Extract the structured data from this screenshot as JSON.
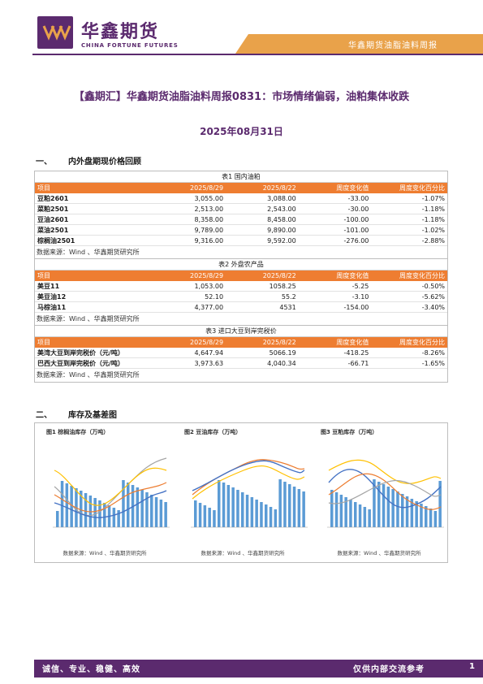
{
  "header": {
    "logo_cn": "华鑫期货",
    "logo_en": "CHINA FORTUNE FUTURES",
    "band_text": "华鑫期货油脂油料周报"
  },
  "title": "【鑫期汇】华鑫期货油脂油料周报0831：市场情绪偏弱，油粕集体收跌",
  "date": "2025年08月31日",
  "section1": {
    "num": "一、",
    "label": "内外盘期现价格回顾"
  },
  "section2": {
    "num": "二、",
    "label": "库存及基差图"
  },
  "tables": [
    {
      "caption": "表1 国内油粕",
      "headers": [
        "项目",
        "2025/8/29",
        "2025/8/22",
        "周度变化值",
        "周度变化百分比"
      ],
      "rows": [
        [
          "豆粕2601",
          "3,055.00",
          "3,088.00",
          "-33.00",
          "-1.07%"
        ],
        [
          "菜粕2501",
          "2,513.00",
          "2,543.00",
          "-30.00",
          "-1.18%"
        ],
        [
          "豆油2601",
          "8,358.00",
          "8,458.00",
          "-100.00",
          "-1.18%"
        ],
        [
          "菜油2501",
          "9,789.00",
          "9,890.00",
          "-101.00",
          "-1.02%"
        ],
        [
          "棕榈油2501",
          "9,316.00",
          "9,592.00",
          "-276.00",
          "-2.88%"
        ]
      ],
      "source": "数据来源：Wind 、华鑫期货研究所"
    },
    {
      "caption": "表2 外盘农产品",
      "headers": [
        "项目",
        "2025/8/29",
        "2025/8/22",
        "周度变化值",
        "周度变化百分比"
      ],
      "rows": [
        [
          "美豆11",
          "1,053.00",
          "1058.25",
          "-5.25",
          "-0.50%"
        ],
        [
          "美豆油12",
          "52.10",
          "55.2",
          "-3.10",
          "-5.62%"
        ],
        [
          "马棕油11",
          "4,377.00",
          "4531",
          "-154.00",
          "-3.40%"
        ]
      ],
      "source": "数据来源：Wind 、华鑫期货研究所"
    },
    {
      "caption": "表3 进口大豆到岸完税价",
      "headers": [
        "项目",
        "2025/8/29",
        "2025/8/22",
        "周度变化值",
        "周度变化百分比"
      ],
      "rows": [
        [
          "美湾大豆到岸完税价（元/吨）",
          "4,647.94",
          "5066.19",
          "-418.25",
          "-8.26%"
        ],
        [
          "巴西大豆到岸完税价（元/吨）",
          "3,973.63",
          "4,040.34",
          "-66.71",
          "-1.65%"
        ]
      ],
      "source": "数据来源：Wind 、华鑫期货研究所"
    }
  ],
  "charts": [
    {
      "title": "图1 棕榈油库存（万吨）",
      "source": "数据来源：Wind 、华鑫期货研究所"
    },
    {
      "title": "图2 豆油库存（万吨）",
      "source": "数据来源：Wind 、华鑫期货研究所"
    },
    {
      "title": "图3 豆粕库存（万吨）",
      "source": "数据来源：Wind 、华鑫期货研究所"
    }
  ],
  "colors": {
    "brand_purple": "#5b2a6e",
    "accent_orange": "#ee7d31",
    "band_orange": "#e9a24a",
    "series_blue": "#4472c4",
    "series_orange": "#ed7d31",
    "series_gray": "#a5a5a5",
    "series_yellow": "#ffc000"
  },
  "footer": {
    "left": "诚信、专业、稳健、高效",
    "right": "仅供内部交流参考",
    "page": "1"
  }
}
